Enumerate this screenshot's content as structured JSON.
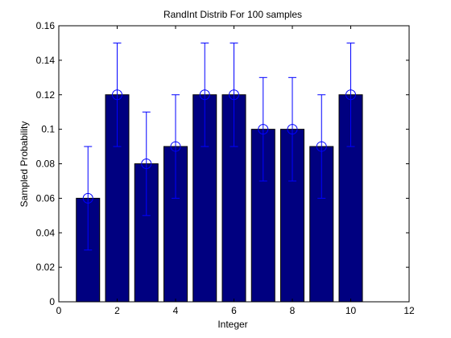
{
  "chart_data": {
    "type": "bar",
    "title": "RandInt Distrib For 100 samples",
    "xlabel": "Integer",
    "ylabel": "Sampled Probability",
    "x": [
      1,
      2,
      3,
      4,
      5,
      6,
      7,
      8,
      9,
      10
    ],
    "values": [
      0.06,
      0.12,
      0.08,
      0.09,
      0.12,
      0.12,
      0.1,
      0.1,
      0.09,
      0.12
    ],
    "error_upper": [
      0.09,
      0.15,
      0.11,
      0.12,
      0.15,
      0.15,
      0.13,
      0.13,
      0.12,
      0.15
    ],
    "error_lower": [
      0.03,
      0.09,
      0.05,
      0.06,
      0.09,
      0.09,
      0.07,
      0.07,
      0.06,
      0.09
    ],
    "xlim": [
      0,
      12
    ],
    "ylim": [
      0,
      0.16
    ],
    "xticks": [
      "0",
      "2",
      "4",
      "6",
      "8",
      "10",
      "12"
    ],
    "yticks": [
      "0",
      "0.02",
      "0.04",
      "0.06",
      "0.08",
      "0.1",
      "0.12",
      "0.14",
      "0.16"
    ],
    "grid": false,
    "bar_color": "#000080",
    "error_color": "#0000ff"
  }
}
